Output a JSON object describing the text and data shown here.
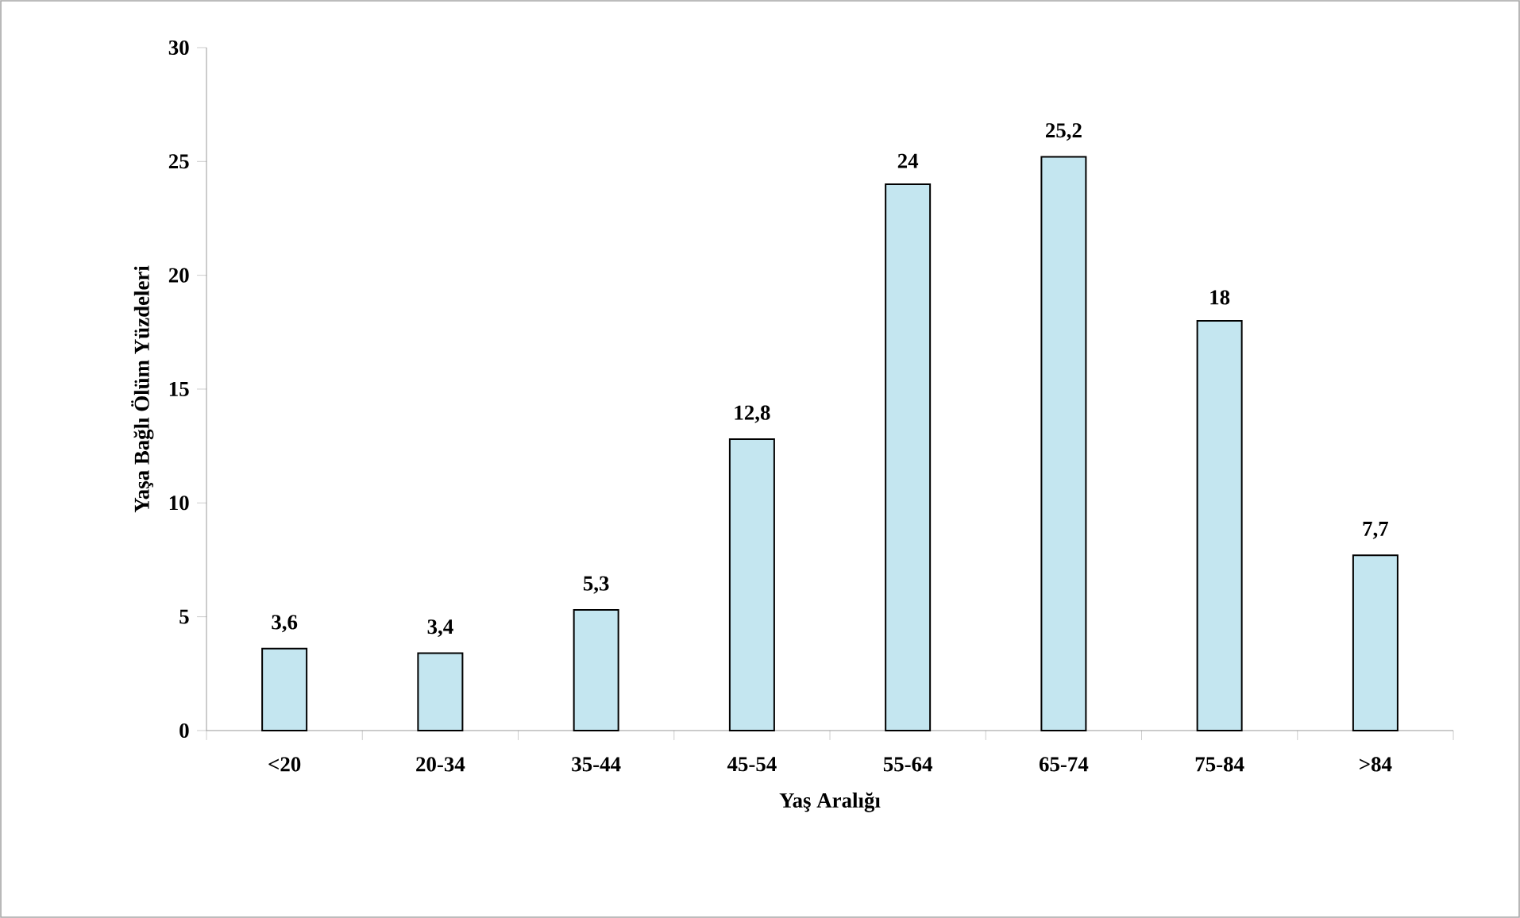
{
  "chart_data": {
    "type": "bar",
    "xlabel": "Yaş Aralığı",
    "ylabel": "Yaşa Bağlı Ölüm Yüzdeleri",
    "categories": [
      "<20",
      "20-34",
      "35-44",
      "45-54",
      "55-64",
      "65-74",
      "75-84",
      ">84"
    ],
    "values": [
      3.6,
      3.4,
      5.3,
      12.8,
      24,
      25.2,
      18,
      7.7
    ],
    "value_labels": [
      "3,6",
      "3,4",
      "5,3",
      "12,8",
      "24",
      "25,2",
      "18",
      "7,7"
    ],
    "color": "#c4e6f0",
    "ylim": [
      0,
      30
    ],
    "yticks": [
      0,
      5,
      10,
      15,
      20,
      25,
      30
    ],
    "grid": false
  }
}
